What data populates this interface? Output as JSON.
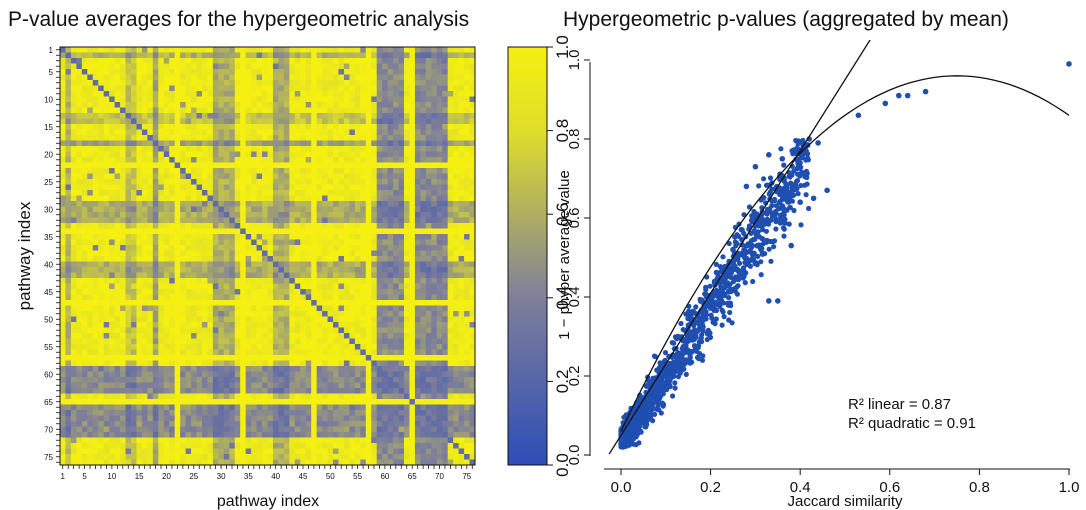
{
  "chart_data": [
    {
      "type": "heatmap",
      "title": "P-value averages for the hypergeometric analysis",
      "xlabel": "pathway index",
      "ylabel": "pathway index",
      "n": 76,
      "x_ticks": [
        1,
        5,
        10,
        15,
        20,
        25,
        30,
        35,
        40,
        45,
        50,
        55,
        60,
        65,
        70,
        75
      ],
      "y_ticks": [
        1,
        5,
        10,
        15,
        20,
        25,
        30,
        35,
        40,
        45,
        50,
        55,
        60,
        65,
        70,
        75
      ],
      "colorbar": {
        "range": [
          0.0,
          1.0
        ],
        "ticks": [
          "0.0",
          "0.2",
          "0.4",
          "0.6",
          "0.8",
          "1.0"
        ],
        "colors": [
          "#2d4db8",
          "#7f7f9a",
          "#dede2a",
          "#f5f012"
        ]
      },
      "low_value_row_bands": [
        {
          "rows": [
            2,
            2
          ],
          "level": 0.62
        },
        {
          "rows": [
            13,
            14
          ],
          "level": 0.7
        },
        {
          "rows": [
            18,
            18
          ],
          "level": 0.55
        },
        {
          "rows": [
            29,
            32
          ],
          "level": 0.6
        },
        {
          "rows": [
            40,
            42
          ],
          "level": 0.6
        },
        {
          "rows": [
            59,
            63
          ],
          "level": 0.45
        },
        {
          "rows": [
            66,
            71
          ],
          "level": 0.45
        }
      ],
      "low_value_col_bands": [
        {
          "cols": [
            2,
            2
          ],
          "level": 0.62
        },
        {
          "cols": [
            13,
            14
          ],
          "level": 0.7
        },
        {
          "cols": [
            18,
            18
          ],
          "level": 0.55
        },
        {
          "cols": [
            29,
            32
          ],
          "level": 0.6
        },
        {
          "cols": [
            40,
            42
          ],
          "level": 0.6
        },
        {
          "cols": [
            59,
            63
          ],
          "level": 0.45
        },
        {
          "cols": [
            66,
            71
          ],
          "level": 0.45
        }
      ],
      "high_value_bands": [
        22,
        34,
        47,
        57,
        65
      ]
    },
    {
      "type": "scatter",
      "title": "Hypergeometric p-values (aggregated by mean)",
      "xlabel": "Jaccard similarity",
      "ylabel": "1 − phyper average value",
      "xlim": [
        0.0,
        1.0
      ],
      "ylim": [
        0.0,
        1.0
      ],
      "x_ticks": [
        "0.0",
        "0.2",
        "0.4",
        "0.6",
        "0.8",
        "1.0"
      ],
      "y_ticks": [
        "0.0",
        "0.2",
        "0.4",
        "0.6",
        "0.8",
        "1.0"
      ],
      "point_color": "#1f4fb0",
      "points_cloud_count": 1400,
      "outlier_points": [
        [
          1.0,
          0.99
        ],
        [
          0.68,
          0.92
        ],
        [
          0.64,
          0.91
        ],
        [
          0.62,
          0.91
        ],
        [
          0.59,
          0.89
        ],
        [
          0.53,
          0.86
        ],
        [
          0.46,
          0.67
        ],
        [
          0.43,
          0.65
        ],
        [
          0.4,
          0.64
        ],
        [
          0.37,
          0.62
        ],
        [
          0.36,
          0.6
        ],
        [
          0.35,
          0.39
        ],
        [
          0.33,
          0.39
        ],
        [
          0.44,
          0.79
        ],
        [
          0.42,
          0.8
        ],
        [
          0.39,
          0.77
        ],
        [
          0.41,
          0.71
        ],
        [
          0.38,
          0.53
        ],
        [
          0.3,
          0.58
        ],
        [
          0.27,
          0.57
        ],
        [
          0.36,
          0.75
        ],
        [
          0.33,
          0.76
        ],
        [
          0.3,
          0.73
        ],
        [
          0.28,
          0.68
        ],
        [
          0.25,
          0.52
        ]
      ],
      "fit_linear": {
        "intercept": 0.05,
        "slope": 1.8,
        "r2_label": "R² linear = 0.87"
      },
      "fit_quadratic": {
        "a": -1.6,
        "b": 2.4,
        "c": 0.06,
        "r2_label": "R² quadratic = 0.91"
      }
    }
  ]
}
